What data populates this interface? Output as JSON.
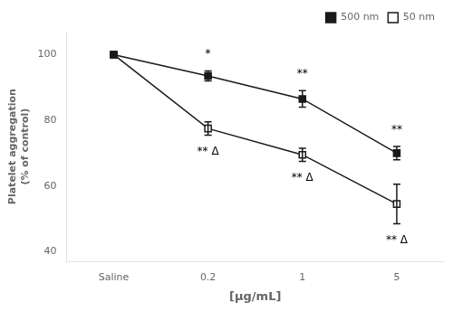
{
  "chart_data": {
    "type": "line",
    "categories": [
      "Saline",
      "0.2",
      "1",
      "5"
    ],
    "xlabel": "[μg/mL]",
    "ylabel": "Platelet aggregation\n(% of control)",
    "ylim": [
      37,
      107
    ],
    "yticks": [
      40,
      60,
      80,
      100
    ],
    "grid": false,
    "legend": "upper right",
    "series": [
      {
        "name": "500 nm",
        "color": "#1a1a1a",
        "marker": "square",
        "line_style": "solid",
        "values": [
          100,
          93.5,
          86.5,
          70
        ],
        "errors": [
          0.0,
          1.5,
          2.5,
          2.0
        ]
      },
      {
        "name": "50 nm",
        "color": "#1a1a1a",
        "marker": "open square",
        "line_style": "solid",
        "values": [
          100,
          77.5,
          69.5,
          54.5
        ],
        "errors": [
          0.0,
          2.0,
          2.0,
          6.0
        ]
      }
    ],
    "annotations": [
      {
        "x": "0.2",
        "y": 98.5,
        "text": "*"
      },
      {
        "x": "1",
        "y": 92.5,
        "text": "**"
      },
      {
        "x": "5",
        "y": 75.5,
        "text": "**"
      },
      {
        "x": "0.2",
        "y": 72,
        "text": "** Δ"
      },
      {
        "x": "1",
        "y": 64,
        "text": "** Δ"
      },
      {
        "x": "5",
        "y": 45,
        "text": "** Δ"
      }
    ]
  }
}
